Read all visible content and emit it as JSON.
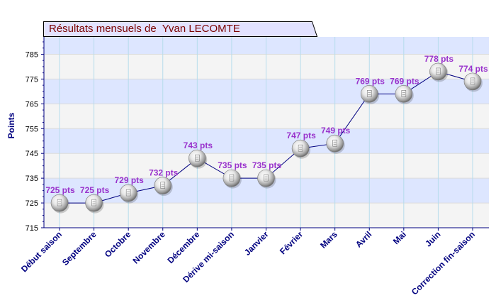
{
  "chart_data": {
    "type": "line",
    "title": "Résultats mensuels de  Yvan LECOMTE",
    "ylabel": "Points",
    "xlabel": "",
    "ylim": [
      715,
      792
    ],
    "yticks": [
      715,
      725,
      735,
      745,
      755,
      765,
      775,
      785
    ],
    "categories": [
      "Début saison",
      "Septembre",
      "Octobre",
      "Novembre",
      "Décembre",
      "Dérive mi-saison",
      "Janvier",
      "Février",
      "Mars",
      "Avril",
      "Mai",
      "Juin",
      "Correction fin-saison"
    ],
    "values": [
      725,
      725,
      729,
      732,
      743,
      735,
      735,
      747,
      749,
      769,
      769,
      778,
      774
    ],
    "data_labels": [
      "725 pts",
      "725 pts",
      "729 pts",
      "732 pts",
      "743 pts",
      "735 pts",
      "735 pts",
      "747 pts",
      "749 pts",
      "769 pts",
      "769 pts",
      "778 pts",
      "774 pts"
    ],
    "colors": {
      "title": "#7a0000",
      "axis_text": "#000080",
      "data_label": "#9932cc",
      "line": "#000080",
      "band_blue": "#dde6ff",
      "band_grey": "#f4f4f4",
      "vgrid": "#b6dcec",
      "title_bg": "#e2e2ff"
    },
    "grid": true
  }
}
